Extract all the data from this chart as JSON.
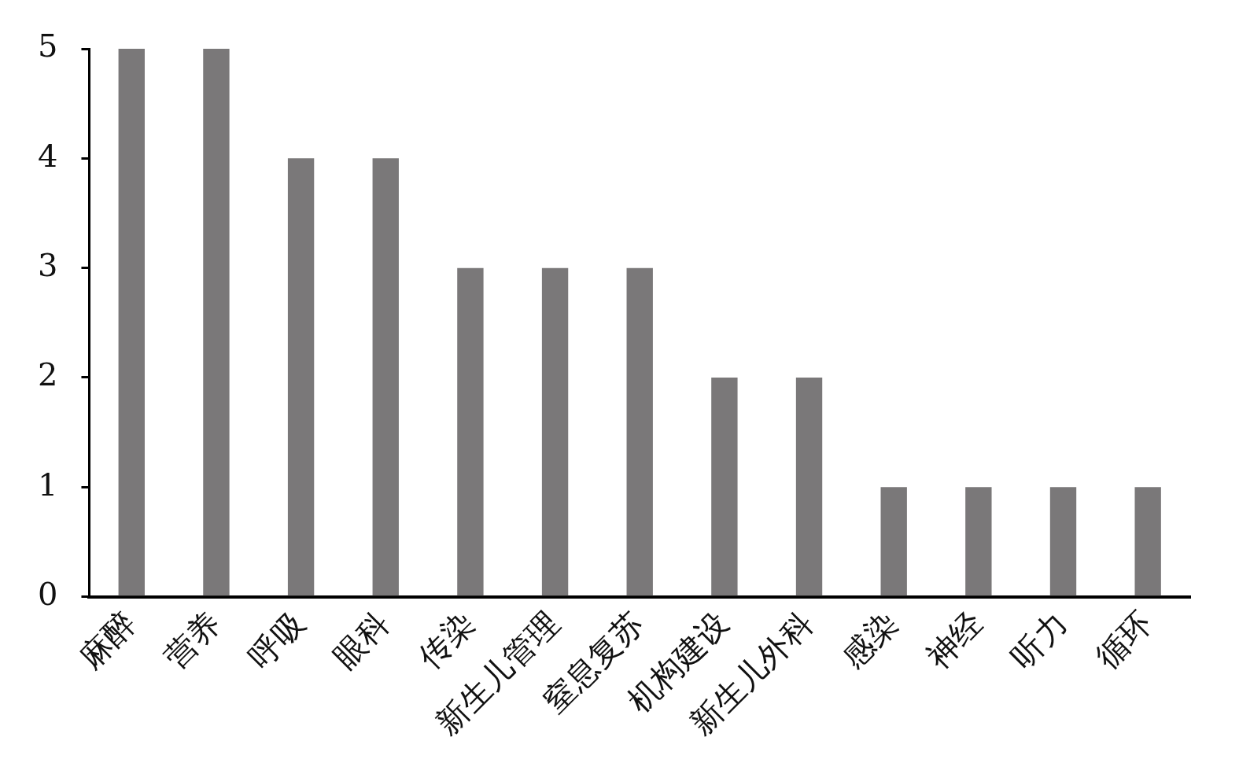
{
  "chart_data": {
    "type": "bar",
    "categories": [
      "麻醉",
      "营养",
      "呼吸",
      "眼科",
      "传染",
      "新生儿管理",
      "窒息复苏",
      "机构建设",
      "新生儿外科",
      "感染",
      "神经",
      "听力",
      "循环"
    ],
    "values": [
      5,
      5,
      4,
      4,
      3,
      3,
      3,
      2,
      2,
      1,
      1,
      1,
      1
    ],
    "color": "#7a7879",
    "ylim": [
      0,
      5
    ],
    "yticks": [
      0,
      1,
      2,
      3,
      4,
      5
    ],
    "grid": false,
    "legend": false
  }
}
